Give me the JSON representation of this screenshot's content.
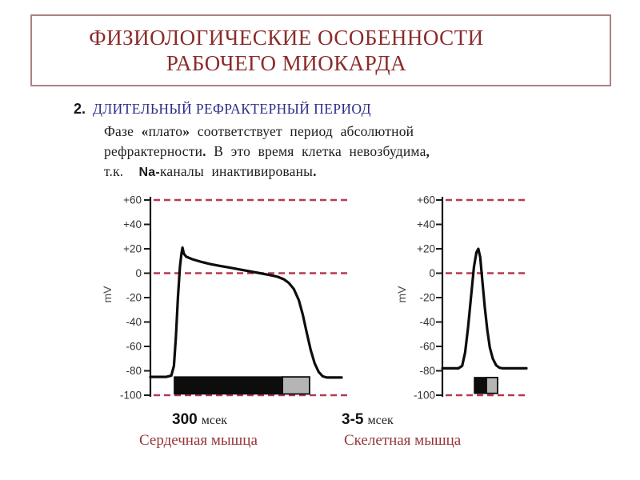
{
  "slide": {
    "title_line1": "ФИЗИОЛОГИЧЕСКИЕ ОСОБЕННОСТИ",
    "title_line2": "РАБОЧЕГО МИОКАРДА"
  },
  "body": {
    "number": "2.",
    "heading": "ДЛИТЕЛЬНЫЙ РЕФРАКТЕРНЫЙ ПЕРИОД",
    "lines": [
      [
        {
          "t": "Фазе "
        },
        {
          "t": "«",
          "b": true
        },
        {
          "t": "плато"
        },
        {
          "t": "»",
          "b": true
        },
        {
          "t": " соответствует период абсолютной"
        }
      ],
      [
        {
          "t": "рефрактерности"
        },
        {
          "t": ".",
          "b": true
        },
        {
          "t": " В это время клетка невозбудима"
        },
        {
          "t": ",",
          "b": true
        }
      ],
      [
        {
          "t": "т.к.  "
        },
        {
          "t": "Na-",
          "sans": true
        },
        {
          "t": "каналы инактивированы"
        },
        {
          "t": ".",
          "b": true
        }
      ]
    ]
  },
  "colors": {
    "title_red": "#8c2b2b",
    "border_rose": "#ad8283",
    "heading_blue": "#2b2e87",
    "caption_red": "#953538",
    "dash_red": "#b43a52",
    "curve_black": "#0d0d0d",
    "bar_gray": "#b5b5b5",
    "tick_text": "#333333",
    "axis_black": "#1a1a1a"
  },
  "chart_data": [
    {
      "type": "line",
      "name": "cardiac-muscle",
      "caption": "Сердечная мышца",
      "duration_value": "300",
      "duration_unit": "мсек",
      "ylabel": "mV",
      "ylim": [
        -100,
        60
      ],
      "grid": false,
      "yticks": [
        {
          "label": "+60",
          "value": 60
        },
        {
          "label": "+40",
          "value": 40
        },
        {
          "label": "+20",
          "value": 20
        },
        {
          "label": "0",
          "value": 0
        },
        {
          "label": "-20",
          "value": -20
        },
        {
          "label": "-40",
          "value": -40
        },
        {
          "label": "-60",
          "value": -60
        },
        {
          "label": "-80",
          "value": -80
        },
        {
          "label": "-100",
          "value": -100
        }
      ],
      "dashed_reference_lines_mv": [
        60,
        0,
        -100
      ],
      "resting_potential_mv": -85,
      "peak_mv": 20,
      "curve_points": [
        [
          0.0,
          -85
        ],
        [
          0.08,
          -85
        ],
        [
          0.105,
          -84
        ],
        [
          0.118,
          -76
        ],
        [
          0.128,
          -52
        ],
        [
          0.138,
          -20
        ],
        [
          0.148,
          5
        ],
        [
          0.156,
          16
        ],
        [
          0.161,
          21
        ],
        [
          0.168,
          16
        ],
        [
          0.18,
          13.5
        ],
        [
          0.21,
          11.5
        ],
        [
          0.25,
          9.5
        ],
        [
          0.3,
          7.5
        ],
        [
          0.35,
          6
        ],
        [
          0.4,
          4.5
        ],
        [
          0.45,
          3
        ],
        [
          0.5,
          1.5
        ],
        [
          0.55,
          0
        ],
        [
          0.6,
          -1.5
        ],
        [
          0.64,
          -3
        ],
        [
          0.67,
          -5
        ],
        [
          0.695,
          -8
        ],
        [
          0.72,
          -13
        ],
        [
          0.745,
          -22
        ],
        [
          0.765,
          -34
        ],
        [
          0.785,
          -49
        ],
        [
          0.805,
          -63
        ],
        [
          0.825,
          -74
        ],
        [
          0.845,
          -81
        ],
        [
          0.865,
          -84.5
        ],
        [
          0.885,
          -85.5
        ],
        [
          0.96,
          -85.5
        ]
      ],
      "refractory_bar": {
        "x_start": 0.12,
        "x_split": 0.663,
        "x_end": 0.799,
        "top_mv": -85,
        "bottom_mv": -99
      }
    },
    {
      "type": "line",
      "name": "skeletal-muscle",
      "caption": "Скелетная мышца",
      "duration_value": "3-5",
      "duration_unit": "мсек",
      "ylabel": "mV",
      "ylim": [
        -100,
        60
      ],
      "grid": false,
      "yticks": [
        {
          "label": "+60",
          "value": 60
        },
        {
          "label": "+40",
          "value": 40
        },
        {
          "label": "+20",
          "value": 20
        },
        {
          "label": "0",
          "value": 0
        },
        {
          "label": "-20",
          "value": -20
        },
        {
          "label": "-40",
          "value": -40
        },
        {
          "label": "-60",
          "value": -60
        },
        {
          "label": "-80",
          "value": -80
        },
        {
          "label": "-100",
          "value": -100
        }
      ],
      "dashed_reference_lines_mv": [
        60,
        0,
        -100
      ],
      "resting_potential_mv": -78,
      "peak_mv": 20,
      "curve_points": [
        [
          0.0,
          -78
        ],
        [
          0.19,
          -78
        ],
        [
          0.235,
          -76
        ],
        [
          0.27,
          -65
        ],
        [
          0.305,
          -45
        ],
        [
          0.34,
          -20
        ],
        [
          0.375,
          5
        ],
        [
          0.405,
          17
        ],
        [
          0.428,
          20
        ],
        [
          0.45,
          13
        ],
        [
          0.475,
          -6
        ],
        [
          0.505,
          -28
        ],
        [
          0.535,
          -47
        ],
        [
          0.565,
          -61
        ],
        [
          0.6,
          -70
        ],
        [
          0.64,
          -75.5
        ],
        [
          0.68,
          -77.5
        ],
        [
          0.72,
          -78
        ],
        [
          1.0,
          -78
        ]
      ],
      "refractory_bar": {
        "x_start": 0.381,
        "x_split": 0.524,
        "x_end": 0.657,
        "top_mv": -85.5,
        "bottom_mv": -98.5
      }
    }
  ]
}
